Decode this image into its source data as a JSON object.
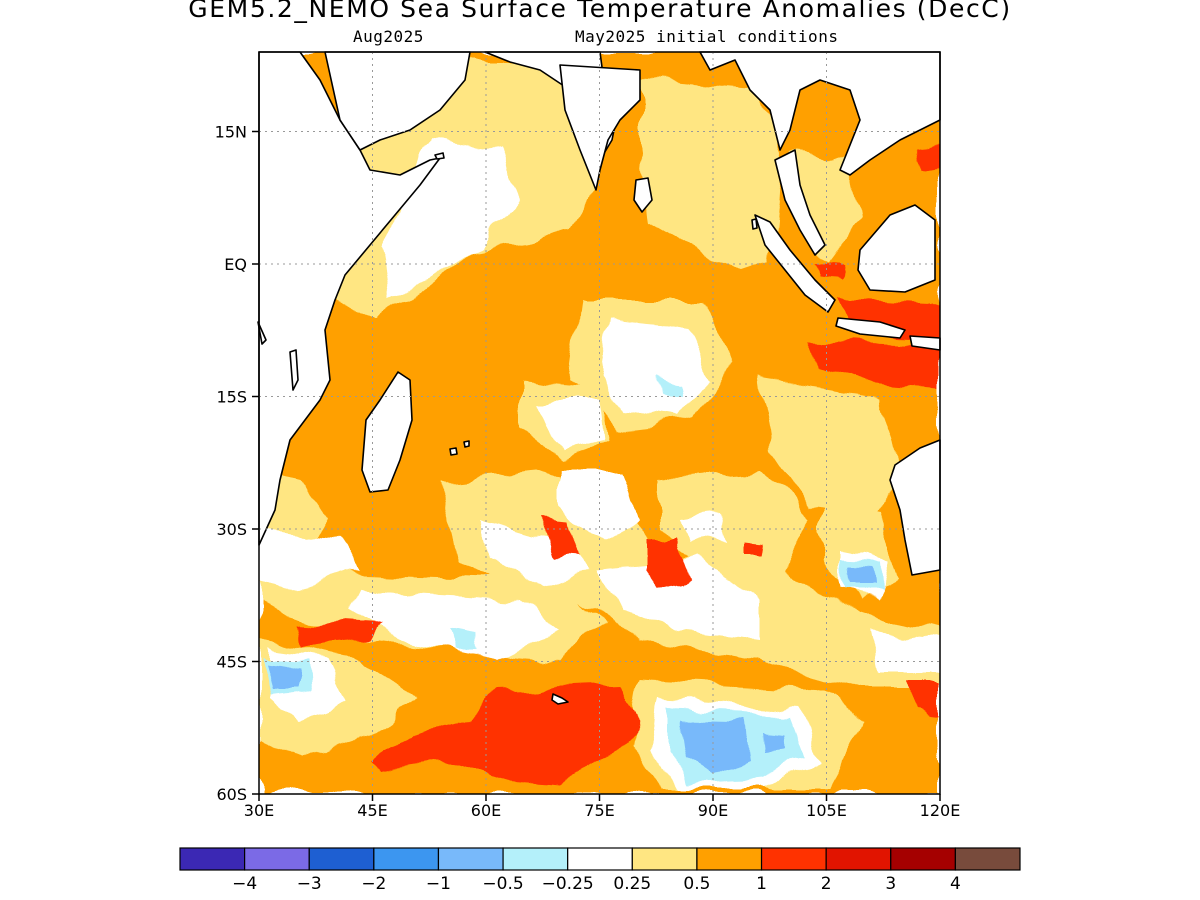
{
  "title": "GEM5.2_NEMO Sea Surface Temperature Anomalies (DecC)",
  "subtitle_left": "Aug2025",
  "subtitle_right": "May2025 initial conditions",
  "map": {
    "lon_range": [
      30,
      120
    ],
    "lat_range": [
      -60,
      24
    ],
    "x_ticks": [
      {
        "value": 30,
        "label": "30E"
      },
      {
        "value": 45,
        "label": "45E"
      },
      {
        "value": 60,
        "label": "60E"
      },
      {
        "value": 75,
        "label": "75E"
      },
      {
        "value": 90,
        "label": "90E"
      },
      {
        "value": 105,
        "label": "105E"
      },
      {
        "value": 120,
        "label": "120E"
      }
    ],
    "y_ticks": [
      {
        "value": 15,
        "label": "15N"
      },
      {
        "value": 0,
        "label": "EQ"
      },
      {
        "value": -15,
        "label": "15S"
      },
      {
        "value": -30,
        "label": "30S"
      },
      {
        "value": -45,
        "label": "45S"
      },
      {
        "value": -60,
        "label": "60S"
      }
    ],
    "grid": true
  },
  "colorbar": {
    "colors": [
      "#3b28b4",
      "#7b6ae6",
      "#1e5fd2",
      "#3c96f0",
      "#78b9fa",
      "#b4f0fa",
      "#ffffff",
      "#ffe682",
      "#ffa000",
      "#ff3200",
      "#e11400",
      "#a50000",
      "#784b3c"
    ],
    "labels": [
      "−4",
      "−3",
      "−2",
      "−1",
      "−0.5",
      "−0.25",
      "0.25",
      "0.5",
      "1",
      "2",
      "3",
      "4"
    ]
  }
}
